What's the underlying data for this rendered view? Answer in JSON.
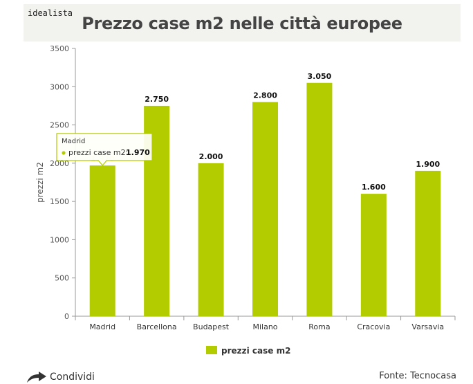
{
  "brand": "idealista",
  "title": "Prezzo case m2 nelle città europee",
  "share_label": "Condividi",
  "source": "Fonte: Tecnocasa",
  "colors": {
    "bar": "#b2cc00",
    "header_bg": "#f2f2ef"
  },
  "tooltip": {
    "title": "Madrid",
    "series": "prezzi case m2:",
    "value": "1.970"
  },
  "chart_data": {
    "type": "bar",
    "title": "Prezzo case m2 nelle città europee",
    "categories": [
      "Madrid",
      "Barcellona",
      "Budapest",
      "Milano",
      "Roma",
      "Cracovia",
      "Varsavia"
    ],
    "series": [
      {
        "name": "prezzi case m2",
        "values": [
          1970,
          2750,
          2000,
          2800,
          3050,
          1600,
          1900
        ],
        "labels": [
          "1.970",
          "2.750",
          "2.000",
          "2.800",
          "3.050",
          "1.600",
          "1.900"
        ]
      }
    ],
    "ylabel": "prezzi m2",
    "xlabel": "",
    "ylim": [
      0,
      3500
    ],
    "yticks": [
      0,
      500,
      1000,
      1500,
      2000,
      2500,
      3000,
      3500
    ],
    "grid": false,
    "legend": "bottom-center"
  }
}
